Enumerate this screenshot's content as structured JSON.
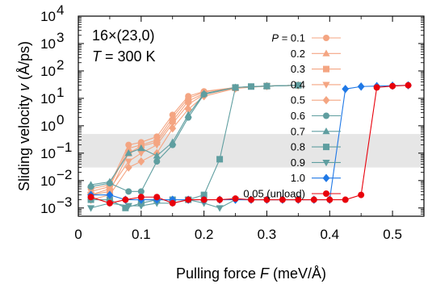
{
  "chart_data": {
    "type": "line",
    "title": "",
    "xlabel": "Pulling force F (meV/Å)",
    "xlabel_parts": [
      "Pulling force ",
      "F",
      " (meV/Å)"
    ],
    "ylabel": "Sliding velocity v (Å/ps)",
    "ylabel_parts": [
      "Sliding velocity ",
      "v",
      " (Å/ps)"
    ],
    "xlim": [
      0,
      0.55
    ],
    "ylim": [
      0.0005,
      10000
    ],
    "yscale": "log",
    "xticks": [
      0,
      0.1,
      0.2,
      0.3,
      0.4,
      0.5
    ],
    "xtick_labels": [
      "0",
      "0.1",
      "0.2",
      "0.3",
      "0.4",
      "0.5"
    ],
    "yticks_exp": [
      -3,
      -2,
      -1,
      0,
      1,
      2,
      3,
      4
    ],
    "ytick_labels": [
      "10",
      "10",
      "10",
      "10",
      "10",
      "10",
      "10",
      "10"
    ],
    "ytick_exponents": [
      "−3",
      "−2",
      "−1",
      "0",
      "1",
      "2",
      "3",
      "4"
    ],
    "shaded_band": {
      "y_range": [
        0.03,
        0.5
      ],
      "color": "#e6e6e6"
    },
    "annotations": {
      "system_label": "16×(23,0)",
      "temperature_prefix": "T",
      "temperature_value": " = 300 K"
    },
    "legend": {
      "placement": "top-right",
      "header_symbol": "P",
      "header_eq": " = "
    },
    "series": [
      {
        "name": "0.1",
        "color": "#f4a582",
        "marker": "circle",
        "x": [
          0.02,
          0.05,
          0.08,
          0.1,
          0.125,
          0.15,
          0.175,
          0.2,
          0.25,
          0.3,
          0.35
        ],
        "y": [
          0.005,
          0.007,
          0.2,
          0.25,
          0.4,
          2.5,
          12,
          18,
          25,
          28,
          30
        ]
      },
      {
        "name": "0.2",
        "color": "#f4a582",
        "marker": "triangle-up",
        "x": [
          0.02,
          0.05,
          0.08,
          0.1,
          0.125,
          0.15,
          0.175,
          0.2,
          0.25,
          0.3,
          0.35
        ],
        "y": [
          0.004,
          0.006,
          0.15,
          0.2,
          0.3,
          2.0,
          10,
          17,
          25,
          28,
          30
        ]
      },
      {
        "name": "0.3",
        "color": "#f4a582",
        "marker": "square",
        "x": [
          0.02,
          0.05,
          0.08,
          0.1,
          0.125,
          0.15,
          0.175,
          0.2,
          0.25,
          0.3,
          0.35
        ],
        "y": [
          0.003,
          0.004,
          0.1,
          0.18,
          0.25,
          1.5,
          8,
          15,
          24,
          28,
          30
        ]
      },
      {
        "name": "0.4",
        "color": "#f4a582",
        "marker": "triangle-down",
        "x": [
          0.02,
          0.05,
          0.08,
          0.1,
          0.125,
          0.15,
          0.175,
          0.2,
          0.25,
          0.3,
          0.35
        ],
        "y": [
          0.003,
          0.005,
          0.05,
          0.1,
          0.2,
          1.2,
          6,
          14,
          24,
          28,
          30
        ]
      },
      {
        "name": "0.5",
        "color": "#f4a582",
        "marker": "diamond",
        "x": [
          0.02,
          0.05,
          0.08,
          0.1,
          0.125,
          0.15,
          0.175,
          0.2,
          0.25,
          0.3,
          0.35
        ],
        "y": [
          0.002,
          0.003,
          0.03,
          0.05,
          0.1,
          0.8,
          4,
          12,
          23,
          28,
          30
        ]
      },
      {
        "name": "0.6",
        "color": "#5f9ea0",
        "marker": "circle",
        "x": [
          0.02,
          0.05,
          0.08,
          0.1,
          0.125,
          0.15,
          0.175,
          0.2,
          0.25,
          0.3,
          0.35
        ],
        "y": [
          0.006,
          0.008,
          0.004,
          0.004,
          0.05,
          0.2,
          2.0,
          14,
          25,
          28,
          30
        ]
      },
      {
        "name": "0.7",
        "color": "#5f9ea0",
        "marker": "triangle-up",
        "x": [
          0.02,
          0.05,
          0.08,
          0.1,
          0.125,
          0.15,
          0.175,
          0.2,
          0.25,
          0.3,
          0.35
        ],
        "y": [
          0.007,
          0.009,
          0.1,
          0.15,
          0.08,
          0.25,
          2.5,
          15,
          25,
          28,
          30
        ]
      },
      {
        "name": "0.8",
        "color": "#5f9ea0",
        "marker": "square",
        "x": [
          0.02,
          0.05,
          0.075,
          0.1,
          0.125,
          0.15,
          0.175,
          0.2,
          0.225,
          0.25,
          0.275,
          0.3,
          0.35
        ],
        "y": [
          0.002,
          0.002,
          0.001,
          0.0015,
          0.002,
          0.002,
          0.002,
          0.003,
          0.06,
          25,
          27,
          28,
          30
        ]
      },
      {
        "name": "0.9",
        "color": "#5f9ea0",
        "marker": "triangle-down",
        "x": [
          0.02,
          0.05,
          0.08,
          0.1,
          0.125,
          0.15,
          0.175,
          0.2,
          0.225,
          0.25,
          0.275,
          0.3,
          0.35
        ],
        "y": [
          0.001,
          0.0015,
          0.0012,
          0.0012,
          0.0015,
          0.0015,
          0.002,
          0.0015,
          0.001,
          0.002,
          0.002,
          0.002,
          0.002
        ]
      },
      {
        "name": "1.0",
        "color": "#1f78e6",
        "marker": "diamond",
        "x": [
          0.02,
          0.05,
          0.075,
          0.1,
          0.125,
          0.15,
          0.175,
          0.2,
          0.225,
          0.25,
          0.275,
          0.3,
          0.325,
          0.35,
          0.375,
          0.4,
          0.425,
          0.45,
          0.475,
          0.5,
          0.525
        ],
        "y": [
          0.003,
          0.003,
          0.002,
          0.002,
          0.002,
          0.002,
          0.002,
          0.002,
          0.002,
          0.002,
          0.002,
          0.002,
          0.002,
          0.002,
          0.002,
          0.002,
          22,
          27,
          28,
          29,
          30
        ]
      },
      {
        "name": "0.05 (unload)",
        "color": "#e8000b",
        "marker": "circle",
        "x": [
          0.02,
          0.05,
          0.075,
          0.1,
          0.125,
          0.15,
          0.175,
          0.2,
          0.225,
          0.25,
          0.275,
          0.3,
          0.325,
          0.35,
          0.375,
          0.4,
          0.425,
          0.45,
          0.475,
          0.5,
          0.525
        ],
        "y": [
          0.0025,
          0.0015,
          0.002,
          0.0025,
          0.0025,
          0.0015,
          0.002,
          0.002,
          0.002,
          0.0022,
          0.002,
          0.002,
          0.002,
          0.002,
          0.002,
          0.002,
          0.002,
          0.003,
          25,
          28,
          30
        ]
      }
    ]
  }
}
